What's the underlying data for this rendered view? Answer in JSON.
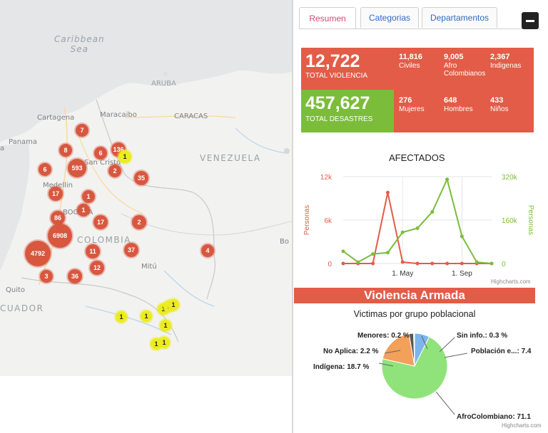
{
  "map": {
    "labels": {
      "sea": "Caribbean\nSea",
      "aruba": "ARUBA",
      "cartagena": "Cartagena",
      "maracaibo": "Maracaibo",
      "caracas": "CARACAS",
      "panama": "Panama",
      "venezuela": "VENEZUELA",
      "san_cristobal": "San Cristo",
      "medellin": "Medellin",
      "bogota": "BOGOTA",
      "colombia": "COLOMBIA",
      "mitu": "Mitú",
      "quito": "Quito",
      "ecuador": "CUADOR",
      "a_left": "a",
      "bo": "Bo"
    },
    "clusters": [
      "7",
      "8",
      "6",
      "593",
      "136",
      "2",
      "6",
      "35",
      "17",
      "1",
      "86",
      "1",
      "17",
      "2",
      "6908",
      "4792",
      "11",
      "37",
      "4",
      "3",
      "36",
      "12"
    ],
    "yellow_clusters": [
      "1",
      "1",
      "1",
      "1",
      "1",
      "1",
      "1",
      "1",
      "1"
    ]
  },
  "panel": {
    "tabs": [
      "Resumen",
      "Categorias",
      "Departamentos"
    ],
    "stats": {
      "total_violencia": {
        "value": "12,722",
        "label": "TOTAL VIOLENCIA"
      },
      "total_desastres": {
        "value": "457,627",
        "label": "TOTAL DESASTRES"
      },
      "civiles": {
        "value": "11,816",
        "label": "Civiles"
      },
      "afro": {
        "value": "9,005",
        "label": "Afro\nColombianos"
      },
      "indigenas": {
        "value": "2,367",
        "label": "Indigenas"
      },
      "mujeres": {
        "value": "276",
        "label": "Mujeres"
      },
      "hombres": {
        "value": "648",
        "label": "Hombres"
      },
      "ninos": {
        "value": "433",
        "label": "Niños"
      }
    },
    "colors": {
      "red": "#e25c48",
      "green": "#7bbd3a",
      "pie_green": "#90e37a",
      "pie_orange": "#f2a05a",
      "pie_blue": "#7cb5ec"
    },
    "line_chart_title": "AFECTADOS",
    "left_axis_title": "Personas",
    "right_axis_title": "Personas",
    "left_ticks": [
      "12k",
      "6k",
      "0"
    ],
    "right_ticks": [
      "320k",
      "160k",
      "0"
    ],
    "x_ticks": [
      "1. May",
      "1. Sep"
    ],
    "credit": "Highcharts.com",
    "banner": "Violencia Armada",
    "pie_title": "Victimas por grupo poblacional",
    "pie_labels": {
      "menores": "Menores: 0.2 %",
      "sin_info": "Sin info.: 0.3 %",
      "no_aplica": "No Aplica: 2.2 %",
      "poblacion": "Población e...: 7.4",
      "indigena": "Indígena: 18.7 %",
      "afro": "AfroColombiano: 71.1"
    }
  },
  "chart_data": [
    {
      "type": "line",
      "title": "AFECTADOS",
      "ylabel": "Personas",
      "y2label": "Personas",
      "x": [
        "Jan",
        "Feb",
        "Mar",
        "Apr",
        "May",
        "Jun",
        "Jul",
        "Aug",
        "Sep",
        "Oct",
        "Nov"
      ],
      "series": [
        {
          "values": [
            0,
            0,
            0,
            9800,
            200,
            0,
            0,
            0,
            0,
            0,
            0
          ],
          "axis": "left",
          "color": "#e25c48"
        },
        {
          "values": [
            45000,
            5000,
            35000,
            40000,
            115000,
            130000,
            190000,
            310000,
            100000,
            5000,
            0
          ],
          "axis": "right",
          "color": "#7bbd3a"
        }
      ],
      "ylim": [
        0,
        12000
      ],
      "y2lim": [
        0,
        320000
      ]
    },
    {
      "type": "pie",
      "title": "Victimas por grupo poblacional",
      "slices": [
        {
          "label": "AfroColombiano",
          "value": 71.1
        },
        {
          "label": "Indígena",
          "value": 18.7
        },
        {
          "label": "No Aplica",
          "value": 2.2
        },
        {
          "label": "Menores",
          "value": 0.2
        },
        {
          "label": "Sin info.",
          "value": 0.3
        },
        {
          "label": "Población e...",
          "value": 7.4
        }
      ]
    }
  ]
}
